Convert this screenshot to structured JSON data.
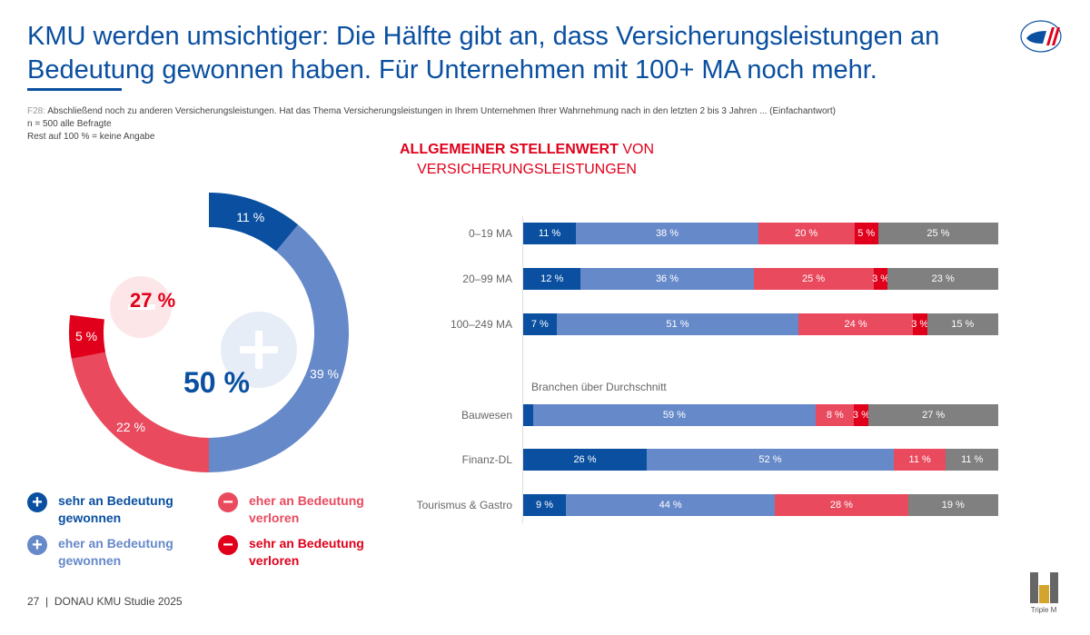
{
  "header": {
    "title": "KMU werden umsichtiger: Die Hälfte gibt an, dass Versicherungsleistungen an Bedeutung gewonnen haben. Für Unternehmen mit 100+ MA noch mehr.",
    "question_code": "F28:",
    "question": "Abschließend noch zu anderen Versicherungsleistungen. Hat das Thema Versicherungsleistungen in Ihrem Unternehmen Ihrer Wahrnehmung nach in den letzten 2 bis 3 Jahren ... (Einfachantwort)",
    "sample": "n = 500 alle Befragte",
    "rest": "Rest auf 100 % = keine Angabe"
  },
  "logos": {
    "top_right": "DONAU",
    "bottom_right": "Triple M"
  },
  "footer": {
    "page": "27",
    "study": "DONAU KMU Studie 2025"
  },
  "colors": {
    "sehr_gewonnen": "#0a4fa0",
    "eher_gewonnen": "#6689c9",
    "eher_verloren": "#e94a5e",
    "sehr_verloren": "#e0001b",
    "keine_angabe": "#808080"
  },
  "chart_data": [
    {
      "type": "pie",
      "variant": "donut",
      "slices": [
        {
          "label": "11 %",
          "value": 11,
          "key": "sehr_gewonnen"
        },
        {
          "label": "39 %",
          "value": 39,
          "key": "eher_gewonnen"
        },
        {
          "label": "22 %",
          "value": 22,
          "key": "eher_verloren"
        },
        {
          "label": "5 %",
          "value": 5,
          "key": "sehr_verloren"
        }
      ],
      "plus_total": "50 %",
      "minus_total": "27 %"
    },
    {
      "type": "bar",
      "orientation": "horizontal",
      "stacked": true,
      "title_bold": "ALLGEMEINER STELLENWERT",
      "title_rest": " VON VERSICHERUNGSLEISTUNGEN",
      "group_label": "Branchen über Durchschnitt",
      "keys": [
        "sehr_gewonnen",
        "eher_gewonnen",
        "eher_verloren",
        "sehr_verloren",
        "keine_angabe"
      ],
      "rows": [
        {
          "label": "0–19 MA",
          "values": [
            11,
            38,
            20,
            5,
            25
          ]
        },
        {
          "label": "20–99 MA",
          "values": [
            12,
            36,
            25,
            3,
            23
          ]
        },
        {
          "label": "100–249 MA",
          "values": [
            7,
            51,
            24,
            3,
            15
          ]
        },
        {
          "label": "Bauwesen",
          "values": [
            2,
            59,
            8,
            3,
            27
          ],
          "hidden_labels": [
            0
          ]
        },
        {
          "label": "Finanz-DL",
          "values": [
            26,
            52,
            11,
            0,
            11
          ]
        },
        {
          "label": "Tourismus & Gastro",
          "values": [
            9,
            44,
            28,
            0,
            19
          ]
        }
      ]
    }
  ],
  "legend": [
    {
      "icon": "plus",
      "label": "sehr an Bedeutung gewonnen",
      "key": "sehr_gewonnen"
    },
    {
      "icon": "minus",
      "label": "eher an Bedeutung verloren",
      "key": "eher_verloren"
    },
    {
      "icon": "plus",
      "label": "eher an Bedeutung gewonnen",
      "key": "eher_gewonnen"
    },
    {
      "icon": "minus",
      "label": "sehr an Bedeutung verloren",
      "key": "sehr_verloren"
    }
  ]
}
